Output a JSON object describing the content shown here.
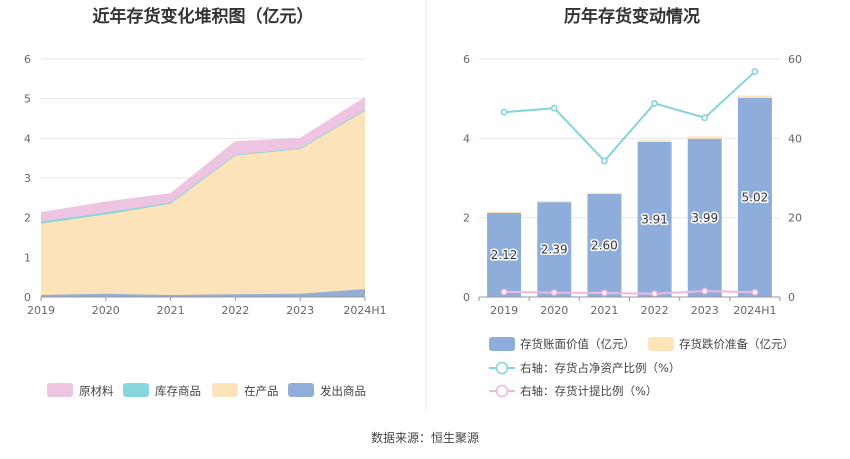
{
  "source_label": "数据来源：恒生聚源",
  "chart_data": [
    {
      "type": "area",
      "title": "近年存货变化堆积图（亿元）",
      "x": [
        "2019",
        "2020",
        "2021",
        "2022",
        "2023",
        "2024H1"
      ],
      "ylim": [
        0,
        6
      ],
      "yticks": [
        0,
        1,
        2,
        3,
        4,
        5,
        6
      ],
      "grid": true,
      "legend_position": "bottom",
      "series": [
        {
          "name": "发出商品",
          "color": "#92ADD8",
          "values": [
            0.05,
            0.08,
            0.05,
            0.07,
            0.08,
            0.2
          ]
        },
        {
          "name": "在产品",
          "color": "#FDE3B9",
          "values": [
            1.8,
            2.0,
            2.3,
            3.5,
            3.65,
            4.5
          ]
        },
        {
          "name": "库存商品",
          "color": "#86D6DA",
          "values": [
            0.05,
            0.05,
            0.03,
            0.02,
            0.02,
            0.02
          ]
        },
        {
          "name": "原材料",
          "color": "#EDC4E2",
          "values": [
            0.22,
            0.26,
            0.22,
            0.32,
            0.24,
            0.3
          ]
        }
      ]
    },
    {
      "type": "bar",
      "title": "历年存货变动情况",
      "categories": [
        "2019",
        "2020",
        "2021",
        "2022",
        "2023",
        "2024H1"
      ],
      "ylim": [
        0,
        6
      ],
      "yticks": [
        0,
        2,
        4,
        6
      ],
      "y2lim": [
        0,
        60
      ],
      "y2ticks": [
        0,
        20,
        40,
        60
      ],
      "grid": true,
      "legend_position": "bottom",
      "bars": [
        {
          "name": "存货账面价值（亿元）",
          "color": "#8EADDB",
          "values": [
            2.12,
            2.39,
            2.6,
            3.91,
            3.99,
            5.02
          ],
          "labels": [
            "2.12",
            "2.39",
            "2.60",
            "3.91",
            "3.99",
            "5.02"
          ]
        },
        {
          "name": "存货跌价准备（亿元）",
          "color": "#FCE5B9",
          "values": [
            0.03,
            0.03,
            0.03,
            0.04,
            0.06,
            0.06
          ]
        }
      ],
      "lines": [
        {
          "name": "右轴：存货占净资产比例（%）",
          "color": "#86D3DA",
          "axis": "right",
          "values": [
            46.6,
            47.6,
            34.3,
            48.8,
            45.2,
            56.8
          ]
        },
        {
          "name": "右轴：存货计提比例（%）",
          "color": "#EDB9E0",
          "axis": "right",
          "values": [
            1.3,
            1.1,
            1.0,
            0.8,
            1.5,
            1.2
          ]
        }
      ]
    }
  ]
}
